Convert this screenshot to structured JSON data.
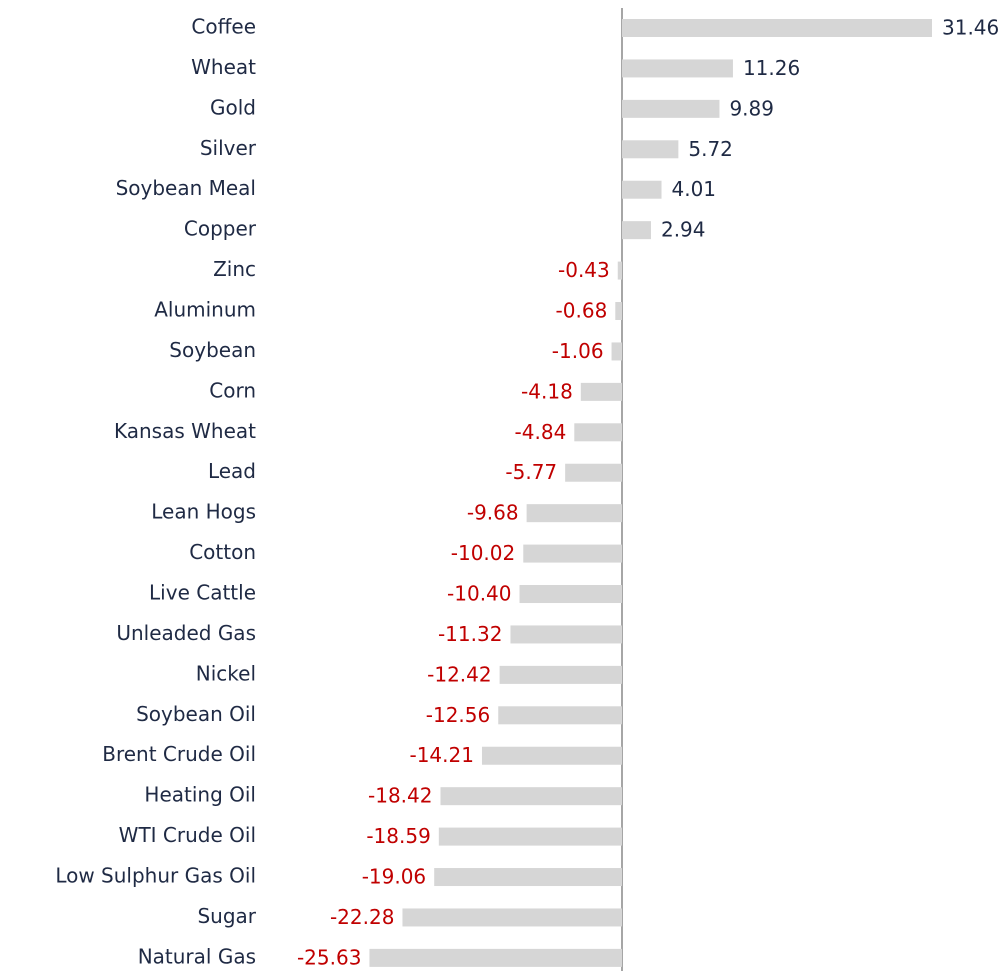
{
  "chart_data": {
    "type": "bar",
    "orientation": "horizontal",
    "categories": [
      "Coffee",
      "Wheat",
      "Gold",
      "Silver",
      "Soybean Meal",
      "Copper",
      "Zinc",
      "Aluminum",
      "Soybean",
      "Corn",
      "Kansas Wheat",
      "Lead",
      "Lean Hogs",
      "Cotton",
      "Live Cattle",
      "Unleaded Gas",
      "Nickel",
      "Soybean Oil",
      "Brent Crude Oil",
      "Heating Oil",
      "WTI Crude Oil",
      "Low Sulphur Gas Oil",
      "Sugar",
      "Natural Gas"
    ],
    "values": [
      31.46,
      11.26,
      9.89,
      5.72,
      4.01,
      2.94,
      -0.43,
      -0.68,
      -1.06,
      -4.18,
      -4.84,
      -5.77,
      -9.68,
      -10.02,
      -10.4,
      -11.32,
      -12.42,
      -12.56,
      -14.21,
      -18.42,
      -18.59,
      -19.06,
      -22.28,
      -25.63
    ],
    "value_labels": [
      "31.46",
      "11.26",
      "9.89",
      "5.72",
      "4.01",
      "2.94",
      "-0.43",
      "-0.68",
      "-1.06",
      "-4.18",
      "-4.84",
      "-5.77",
      "-9.68",
      "-10.02",
      "-10.40",
      "-11.32",
      "-12.42",
      "-12.56",
      "-14.21",
      "-18.42",
      "-18.59",
      "-19.06",
      "-22.28",
      "-25.63"
    ],
    "color": "#d6d6d6",
    "positive_label_color": "#1f2a44",
    "negative_label_color": "#c00000"
  }
}
